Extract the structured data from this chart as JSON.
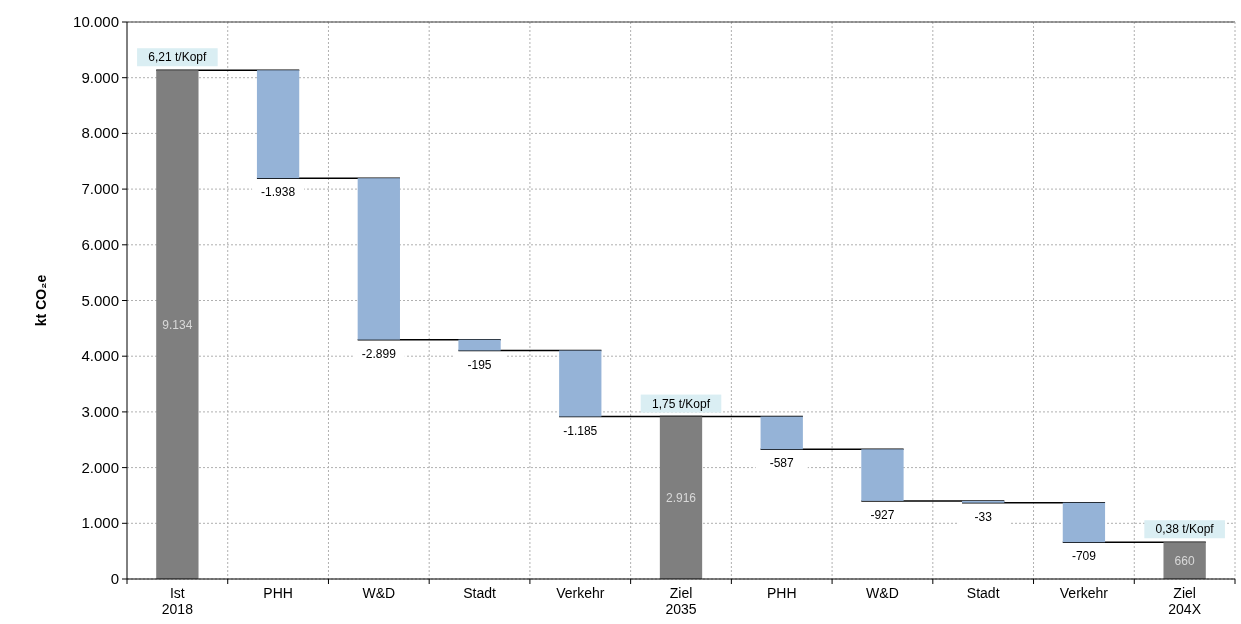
{
  "chart_data": {
    "type": "bar",
    "ylabel": "kt CO₂e",
    "categories": [
      "Ist 2018",
      "PHH",
      "W&D",
      "Stadt",
      "Verkehr",
      "Ziel 2035",
      "PHH",
      "W&D",
      "Stadt",
      "Verkehr",
      "Ziel 204X"
    ],
    "values": [
      9134,
      -1938,
      -2899,
      -195,
      -1185,
      2916,
      -587,
      -927,
      -33,
      -709,
      660
    ],
    "base": [
      0,
      9134,
      7196,
      4297,
      4102,
      0,
      2916,
      2329,
      1402,
      1369,
      0
    ],
    "colors": [
      "#7f7f7f",
      "#95b3d7",
      "#95b3d7",
      "#95b3d7",
      "#95b3d7",
      "#7f7f7f",
      "#95b3d7",
      "#95b3d7",
      "#95b3d7",
      "#95b3d7",
      "#7f7f7f"
    ],
    "value_labels": [
      "9.134",
      "-1.938",
      "-2.899",
      "-195",
      "-1.185",
      "2.916",
      "-587",
      "-927",
      "-33",
      "-709",
      "660"
    ],
    "ylim": [
      0,
      10000
    ],
    "yticks": [
      {
        "value": 0,
        "label": "0"
      },
      {
        "value": 1000,
        "label": "1.000"
      },
      {
        "value": 2000,
        "label": "2.000"
      },
      {
        "value": 3000,
        "label": "3.000"
      },
      {
        "value": 4000,
        "label": "4.000"
      },
      {
        "value": 5000,
        "label": "5.000"
      },
      {
        "value": 6000,
        "label": "6.000"
      },
      {
        "value": 7000,
        "label": "7.000"
      },
      {
        "value": 8000,
        "label": "8.000"
      },
      {
        "value": 9000,
        "label": "9.000"
      },
      {
        "value": 10000,
        "label": "10.000"
      }
    ],
    "grid": true,
    "annotations": [
      {
        "text": "6,21 t/Kopf",
        "x": "Ist 2018",
        "y": 9134
      },
      {
        "text": "1,75 t/Kopf",
        "x": "Ziel 2035",
        "y": 2916
      },
      {
        "text": "0,38 t/Kopf",
        "x": "Ziel 204X",
        "y": 660
      }
    ]
  }
}
